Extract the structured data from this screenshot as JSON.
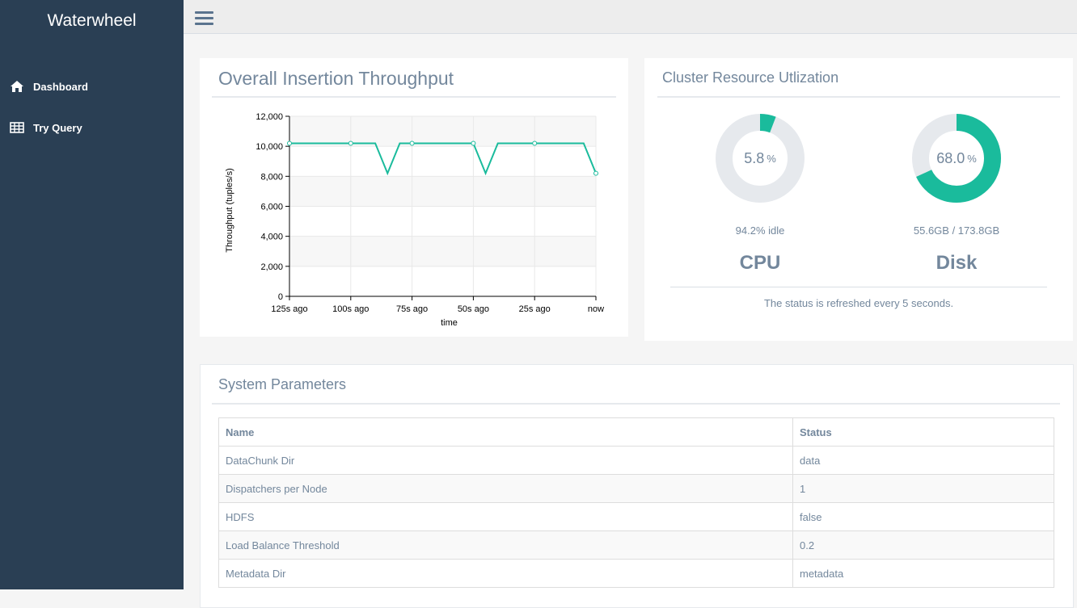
{
  "app": {
    "title": "Waterwheel"
  },
  "sidebar": {
    "items": [
      {
        "label": "Dashboard",
        "icon": "home-icon"
      },
      {
        "label": "Try Query",
        "icon": "table-icon"
      }
    ]
  },
  "throughput": {
    "title": "Overall Insertion Throughput"
  },
  "chart_data": {
    "type": "line",
    "title": "Overall Insertion Throughput",
    "xlabel": "time",
    "ylabel": "Throughput (tuples/s)",
    "ylim": [
      0,
      12000
    ],
    "xlim": [
      -125,
      0
    ],
    "yticks": [
      0,
      2000,
      4000,
      6000,
      8000,
      10000,
      12000
    ],
    "ytick_labels": [
      "0",
      "2,000",
      "4,000",
      "6,000",
      "8,000",
      "10,000",
      "12,000"
    ],
    "xticks": [
      -125,
      -100,
      -75,
      -50,
      -25,
      0
    ],
    "xtick_labels": [
      "125s ago",
      "100s ago",
      "75s ago",
      "50s ago",
      "25s ago",
      "now"
    ],
    "color": "#1abb9c",
    "series": [
      {
        "name": "throughput",
        "x": [
          -125,
          -120,
          -115,
          -110,
          -105,
          -100,
          -95,
          -90,
          -85,
          -80,
          -75,
          -70,
          -65,
          -60,
          -55,
          -50,
          -45,
          -40,
          -35,
          -30,
          -25,
          -20,
          -15,
          -10,
          -5,
          0
        ],
        "y": [
          10200,
          10200,
          10200,
          10200,
          10200,
          10200,
          10200,
          10200,
          8200,
          10200,
          10200,
          10200,
          10200,
          10200,
          10200,
          10200,
          8200,
          10200,
          10200,
          10200,
          10200,
          10200,
          10200,
          10200,
          10200,
          8200
        ]
      }
    ],
    "markers": [
      -125,
      -100,
      -75,
      -50,
      -25,
      0
    ]
  },
  "cluster": {
    "title": "Cluster Resource Utlization",
    "cpu": {
      "value": "5.8",
      "percent": 5.8,
      "unit": "%",
      "sub": "94.2% idle",
      "name": "CPU"
    },
    "disk": {
      "value": "68.0",
      "percent": 68.0,
      "unit": "%",
      "sub": "55.6GB / 173.8GB",
      "name": "Disk"
    },
    "refresh_note": "The status is refreshed every 5 seconds.",
    "colors": {
      "fill": "#1abb9c",
      "track": "#e6e9ed"
    }
  },
  "params": {
    "title": "System Parameters",
    "columns": [
      "Name",
      "Status"
    ],
    "rows": [
      [
        "DataChunk Dir",
        "data"
      ],
      [
        "Dispatchers per Node",
        "1"
      ],
      [
        "HDFS",
        "false"
      ],
      [
        "Load Balance Threshold",
        "0.2"
      ],
      [
        "Metadata Dir",
        "metadata"
      ]
    ]
  }
}
